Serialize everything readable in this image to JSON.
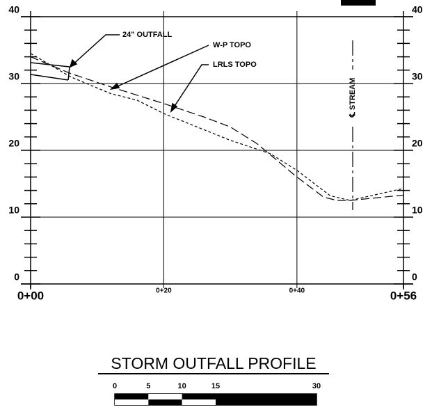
{
  "chart_data": {
    "type": "line",
    "title": "STORM OUTFALL PROFILE",
    "annotations": [
      "24\" OUTFALL",
      "W-P TOPO",
      "LRLS TOPO",
      "℄ STREAM"
    ],
    "xlim": [
      0,
      56
    ],
    "xticks": [
      {
        "value": 0,
        "label": "0+00"
      },
      {
        "value": 20,
        "label": "0+20"
      },
      {
        "value": 40,
        "label": "0+40"
      },
      {
        "value": 56,
        "label": "0+56"
      }
    ],
    "ylim": [
      0,
      40
    ],
    "yticks": [
      0,
      10,
      20,
      30,
      40
    ],
    "grid": true,
    "series": [
      {
        "name": "W-P TOPO",
        "color": "#000000",
        "dash": "long",
        "x": [
          0,
          6,
          12,
          20,
          26,
          30,
          34,
          40,
          44,
          46,
          48,
          56
        ],
        "values": [
          34.0,
          31.5,
          29.5,
          27.0,
          25.0,
          23.5,
          21.0,
          16.0,
          13.0,
          12.5,
          12.5,
          13.3
        ]
      },
      {
        "name": "LRLS TOPO",
        "color": "#000000",
        "dash": "short",
        "x": [
          0,
          6,
          12,
          16,
          20,
          30,
          36,
          40,
          45,
          48,
          56
        ],
        "values": [
          34.5,
          31.0,
          28.5,
          27.5,
          25.5,
          21.5,
          19.5,
          17.0,
          13.2,
          12.5,
          14.3
        ]
      }
    ],
    "scale_bar": [
      0,
      5,
      10,
      15,
      30
    ]
  }
}
